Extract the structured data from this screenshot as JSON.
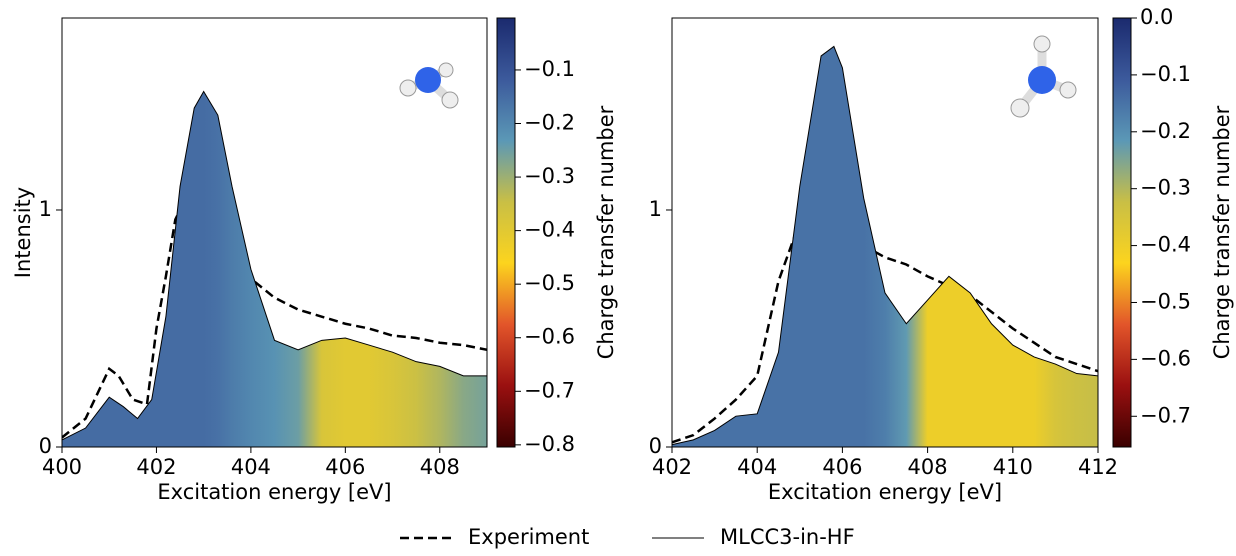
{
  "chart_data": [
    {
      "type": "area",
      "x_label": "Excitation energy [eV]",
      "y_label": "Intensity",
      "xlim": [
        400,
        409
      ],
      "xticks": [
        400,
        402,
        404,
        406,
        408
      ],
      "ylim": [
        0,
        1.81
      ],
      "yticks": [
        0,
        1
      ],
      "colorbar": {
        "label": "Charge transfer number",
        "lim": [
          -0.804,
          -0.003
        ],
        "colormap": [
          "#3a0000",
          "#9a1010",
          "#e2552a",
          "#fcd41e",
          "#c9bf45",
          "#5b98b6",
          "#3c5a9c",
          "#1b2a6e"
        ],
        "ticks": [
          {
            "value": -0.8,
            "label": "−0.8"
          },
          {
            "value": -0.7,
            "label": "−0.7"
          },
          {
            "value": -0.6,
            "label": "−0.6"
          },
          {
            "value": -0.5,
            "label": "−0.5"
          },
          {
            "value": -0.4,
            "label": "−0.4"
          },
          {
            "value": -0.3,
            "label": "−0.3"
          },
          {
            "value": -0.2,
            "label": "−0.2"
          },
          {
            "value": -0.1,
            "label": "−0.1"
          }
        ]
      },
      "series": [
        {
          "name": "Experiment",
          "color": "#000000",
          "dashed": true,
          "x": [
            400,
            400.5,
            401,
            401.2,
            401.5,
            401.8,
            402,
            402.2,
            402.4,
            402.5,
            402.7,
            402.9,
            403.1,
            403.3,
            403.6,
            404,
            404.5,
            405,
            405.5,
            406,
            406.5,
            407,
            407.5,
            408,
            408.5,
            409
          ],
          "values": [
            0.04,
            0.12,
            0.33,
            0.3,
            0.2,
            0.18,
            0.5,
            0.72,
            0.96,
            1.0,
            0.92,
            0.86,
            0.87,
            0.82,
            0.76,
            0.71,
            0.63,
            0.58,
            0.55,
            0.52,
            0.5,
            0.47,
            0.46,
            0.44,
            0.43,
            0.41
          ]
        },
        {
          "name": "MLCC3-in-HF",
          "color": "#000000",
          "dashed": false,
          "x": [
            400,
            400.5,
            401,
            401.3,
            401.6,
            401.9,
            402.2,
            402.5,
            402.8,
            403,
            403.3,
            403.6,
            404,
            404.5,
            405,
            405.5,
            406,
            406.5,
            407,
            407.5,
            408,
            408.5,
            409
          ],
          "values": [
            0.03,
            0.08,
            0.21,
            0.17,
            0.12,
            0.2,
            0.55,
            1.1,
            1.43,
            1.5,
            1.4,
            1.1,
            0.75,
            0.45,
            0.41,
            0.45,
            0.46,
            0.43,
            0.4,
            0.36,
            0.34,
            0.3,
            0.3
          ],
          "charge_transfer": [
            -0.15,
            -0.15,
            -0.15,
            -0.15,
            -0.15,
            -0.15,
            -0.15,
            -0.15,
            -0.15,
            -0.15,
            -0.16,
            -0.18,
            -0.2,
            -0.22,
            -0.25,
            -0.38,
            -0.4,
            -0.4,
            -0.38,
            -0.35,
            -0.32,
            -0.28,
            -0.26
          ]
        }
      ]
    },
    {
      "type": "area",
      "x_label": "Excitation energy [eV]",
      "xlim": [
        402,
        412
      ],
      "xticks": [
        402,
        404,
        406,
        408,
        410,
        412
      ],
      "ylim": [
        0,
        1.81
      ],
      "yticks": [
        0,
        1
      ],
      "colorbar": {
        "label": "Charge transfer number",
        "lim": [
          -0.754,
          0
        ],
        "colormap": [
          "#3a0000",
          "#9a1010",
          "#e2552a",
          "#fcd41e",
          "#c9bf45",
          "#5b98b6",
          "#3c5a9c",
          "#1b2a6e"
        ],
        "ticks": [
          {
            "value": -0.7,
            "label": "−0.7"
          },
          {
            "value": -0.6,
            "label": "−0.6"
          },
          {
            "value": -0.5,
            "label": "−0.5"
          },
          {
            "value": -0.4,
            "label": "−0.4"
          },
          {
            "value": -0.3,
            "label": "−0.3"
          },
          {
            "value": -0.2,
            "label": "−0.2"
          },
          {
            "value": -0.1,
            "label": "−0.1"
          },
          {
            "value": 0,
            "label": "0.0"
          }
        ]
      },
      "series": [
        {
          "name": "Experiment",
          "color": "#000000",
          "dashed": true,
          "x": [
            402,
            402.5,
            403,
            403.5,
            404,
            404.5,
            405,
            405.3,
            405.6,
            406,
            406.5,
            407,
            407.5,
            408,
            408.5,
            409,
            409.5,
            410,
            410.5,
            411,
            411.5,
            412
          ],
          "values": [
            0.02,
            0.05,
            0.12,
            0.2,
            0.3,
            0.7,
            0.95,
            1.0,
            0.99,
            0.93,
            0.85,
            0.8,
            0.77,
            0.72,
            0.68,
            0.64,
            0.57,
            0.5,
            0.44,
            0.38,
            0.35,
            0.32
          ]
        },
        {
          "name": "MLCC3-in-HF",
          "color": "#000000",
          "dashed": false,
          "x": [
            402,
            402.5,
            403,
            403.5,
            404,
            404.5,
            405,
            405.5,
            405.8,
            406,
            406.5,
            407,
            407.5,
            408,
            408.5,
            409,
            409.5,
            410,
            410.5,
            411,
            411.5,
            412
          ],
          "values": [
            0.01,
            0.03,
            0.07,
            0.13,
            0.14,
            0.4,
            1.1,
            1.65,
            1.69,
            1.6,
            1.05,
            0.65,
            0.52,
            0.62,
            0.72,
            0.65,
            0.52,
            0.43,
            0.38,
            0.35,
            0.31,
            0.3
          ],
          "charge_transfer": [
            -0.15,
            -0.15,
            -0.15,
            -0.15,
            -0.15,
            -0.15,
            -0.15,
            -0.15,
            -0.15,
            -0.15,
            -0.15,
            -0.17,
            -0.22,
            -0.4,
            -0.4,
            -0.4,
            -0.4,
            -0.4,
            -0.4,
            -0.35,
            -0.33,
            -0.32
          ]
        }
      ]
    }
  ]
}
